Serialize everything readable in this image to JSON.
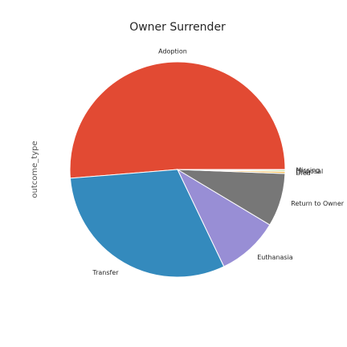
{
  "chart_data": {
    "type": "pie",
    "title": "Owner Surrender",
    "ylabel": "outcome_type",
    "start_angle_deg": 0,
    "direction": "counterclockwise",
    "slices": [
      {
        "label": "Adoption",
        "value": 51.3,
        "color": "#E24A33"
      },
      {
        "label": "Transfer",
        "value": 30.8,
        "color": "#348ABD"
      },
      {
        "label": "Euthanasia",
        "value": 9.3,
        "color": "#988ED5"
      },
      {
        "label": "Return to Owner",
        "value": 8.0,
        "color": "#777777"
      },
      {
        "label": "Died",
        "value": 0.3,
        "color": "#FBC15E"
      },
      {
        "label": "Disposal",
        "value": 0.2,
        "color": "#8EBA42"
      },
      {
        "label": "Missing",
        "value": 0.1,
        "color": "#FFB5B8"
      }
    ]
  }
}
